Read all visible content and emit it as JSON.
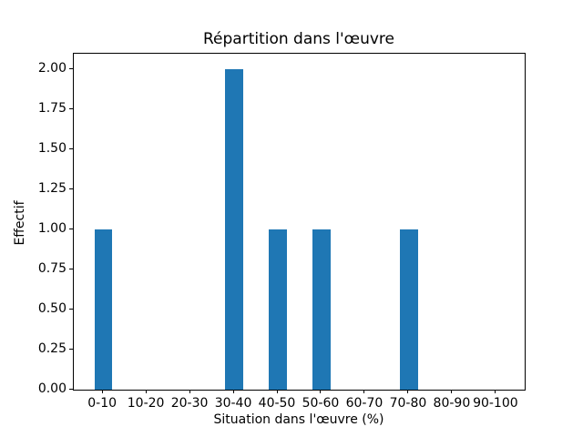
{
  "chart_data": {
    "type": "bar",
    "title": "Répartition dans l'œuvre",
    "xlabel": "Situation dans l'œuvre (%)",
    "ylabel": "Effectif",
    "categories": [
      "0-10",
      "10-20",
      "20-30",
      "30-40",
      "40-50",
      "50-60",
      "60-70",
      "70-80",
      "80-90",
      "90-100"
    ],
    "values": [
      1,
      0,
      0,
      2,
      1,
      1,
      0,
      1,
      0,
      0
    ],
    "ylim": [
      0,
      2.1
    ],
    "yticks": [
      0.0,
      0.25,
      0.5,
      0.75,
      1.0,
      1.25,
      1.5,
      1.75,
      2.0
    ],
    "ytick_labels": [
      "0.00",
      "0.25",
      "0.50",
      "0.75",
      "1.00",
      "1.25",
      "1.50",
      "1.75",
      "2.00"
    ],
    "bar_color": "#1f77b4",
    "bar_width_units": 0.4,
    "x_margin_units": 0.67,
    "grid": false,
    "legend": null
  }
}
